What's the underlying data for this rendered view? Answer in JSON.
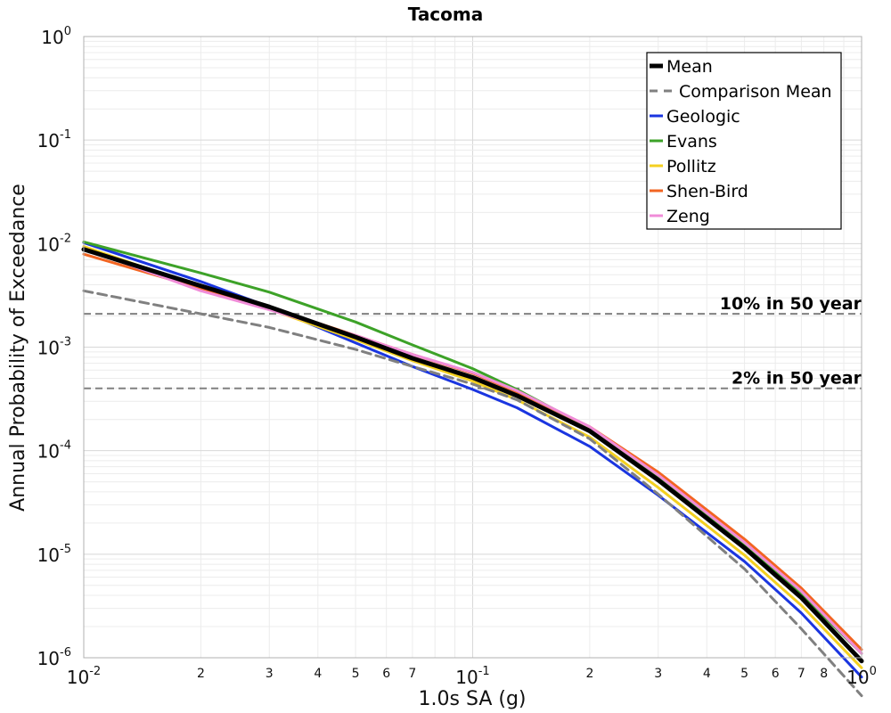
{
  "chart_data": {
    "type": "line",
    "title": "Tacoma",
    "xlabel": "1.0s SA (g)",
    "ylabel": "Annual Probability of Exceedance",
    "xscale": "log",
    "yscale": "log",
    "xlim": [
      0.01,
      1.0
    ],
    "ylim": [
      1e-06,
      1.0
    ],
    "grid": true,
    "legend_position": "top-right",
    "x_major_ticks": [
      {
        "value": 0.01,
        "base": "10",
        "exp": "-2"
      },
      {
        "value": 0.1,
        "base": "10",
        "exp": "-1"
      },
      {
        "value": 1.0,
        "base": "10",
        "exp": "0"
      }
    ],
    "x_minor_ticks": [
      {
        "value": 0.02,
        "label": "2"
      },
      {
        "value": 0.03,
        "label": "3"
      },
      {
        "value": 0.04,
        "label": "4"
      },
      {
        "value": 0.05,
        "label": "5"
      },
      {
        "value": 0.06,
        "label": "6"
      },
      {
        "value": 0.07,
        "label": "7"
      },
      {
        "value": 0.2,
        "label": "2"
      },
      {
        "value": 0.3,
        "label": "3"
      },
      {
        "value": 0.4,
        "label": "4"
      },
      {
        "value": 0.5,
        "label": "5"
      },
      {
        "value": 0.6,
        "label": "6"
      },
      {
        "value": 0.7,
        "label": "7"
      },
      {
        "value": 0.8,
        "label": "8"
      }
    ],
    "y_major_ticks": [
      {
        "value": 1.0,
        "base": "10",
        "exp": "0"
      },
      {
        "value": 0.1,
        "base": "10",
        "exp": "-1"
      },
      {
        "value": 0.01,
        "base": "10",
        "exp": "-2"
      },
      {
        "value": 0.001,
        "base": "10",
        "exp": "-3"
      },
      {
        "value": 0.0001,
        "base": "10",
        "exp": "-4"
      },
      {
        "value": 1e-05,
        "base": "10",
        "exp": "-5"
      },
      {
        "value": 1e-06,
        "base": "10",
        "exp": "-6"
      }
    ],
    "reference_lines": [
      {
        "label": "10% in 50 year",
        "y": 0.0021,
        "color": "#808080"
      },
      {
        "label": "2% in 50 year",
        "y": 0.0004,
        "color": "#808080"
      }
    ],
    "x": [
      0.01,
      0.02,
      0.03,
      0.05,
      0.07,
      0.1,
      0.13,
      0.2,
      0.3,
      0.5,
      0.7,
      1.0
    ],
    "series": [
      {
        "name": "Mean",
        "color": "#000000",
        "width": 5,
        "dash": "",
        "values": [
          0.0088,
          0.0039,
          0.00245,
          0.00125,
          0.00078,
          0.00051,
          0.00034,
          0.000155,
          5.2e-05,
          1.15e-05,
          3.8e-06,
          9.3e-07
        ]
      },
      {
        "name": "Comparison Mean",
        "color": "#808080",
        "width": 3,
        "dash": "10,6",
        "values": [
          0.0035,
          0.0021,
          0.00155,
          0.00095,
          0.00065,
          0.00044,
          0.00031,
          0.00013,
          3.8e-05,
          7.2e-06,
          1.9e-06,
          4.3e-07
        ]
      },
      {
        "name": "Geologic",
        "color": "#1a35e0",
        "width": 3,
        "dash": "",
        "values": [
          0.0102,
          0.0043,
          0.00245,
          0.0011,
          0.00065,
          0.00039,
          0.00026,
          0.00011,
          3.7e-05,
          8.5e-06,
          2.7e-06,
          6.5e-07
        ]
      },
      {
        "name": "Evans",
        "color": "#3da228",
        "width": 3,
        "dash": "",
        "values": [
          0.0104,
          0.0052,
          0.0034,
          0.00175,
          0.00105,
          0.00062,
          0.00039,
          0.000165,
          5.5e-05,
          1.2e-05,
          4.1e-06,
          1.1e-06
        ]
      },
      {
        "name": "Pollitz",
        "color": "#f4d020",
        "width": 3,
        "dash": "",
        "values": [
          0.0094,
          0.0038,
          0.00232,
          0.00118,
          0.00074,
          0.00047,
          0.00031,
          0.000135,
          4.4e-05,
          9.8e-06,
          3.2e-06,
          8e-07
        ]
      },
      {
        "name": "Shen-Bird",
        "color": "#f26522",
        "width": 3,
        "dash": "",
        "values": [
          0.0079,
          0.0037,
          0.00242,
          0.0013,
          0.00085,
          0.00056,
          0.00037,
          0.00017,
          6.2e-05,
          1.4e-05,
          4.7e-06,
          1.2e-06
        ]
      },
      {
        "name": "Zeng",
        "color": "#f08cd8",
        "width": 3,
        "dash": "",
        "values": [
          0.009,
          0.0035,
          0.0023,
          0.0013,
          0.00085,
          0.00057,
          0.00038,
          0.00017,
          5.8e-05,
          1.3e-05,
          4.4e-06,
          1.1e-06
        ]
      }
    ]
  }
}
